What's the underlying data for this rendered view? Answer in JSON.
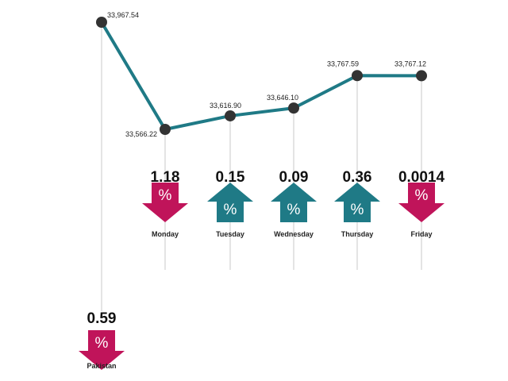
{
  "chart_data": {
    "type": "line",
    "categories": [
      "Pakistan",
      "Monday",
      "Tuesday",
      "Wednesday",
      "Thursday",
      "Friday"
    ],
    "series": [
      {
        "values": [
          33967.54,
          33566.22,
          33616.9,
          33646.1,
          33767.59,
          33767.12
        ]
      }
    ],
    "value_labels": [
      "33,967.54",
      "33,566.22",
      "33,616.90",
      "33,646.10",
      "33,767.59",
      "33,767.12"
    ],
    "ylim": [
      33500,
      34000
    ],
    "grid": false,
    "legend": "none",
    "changes": [
      {
        "day": "Pakistan",
        "percent": "0.59",
        "direction": "down"
      },
      {
        "day": "Monday",
        "percent": "1.18",
        "direction": "down"
      },
      {
        "day": "Tuesday",
        "percent": "0.15",
        "direction": "up"
      },
      {
        "day": "Wednesday",
        "percent": "0.09",
        "direction": "up"
      },
      {
        "day": "Thursday",
        "percent": "0.36",
        "direction": "up"
      },
      {
        "day": "Friday",
        "percent": "0.0014",
        "direction": "down"
      }
    ],
    "percent_symbol": "%"
  },
  "colors": {
    "line": "#1f7a86",
    "marker": "#333333",
    "down": "#c0145a",
    "up": "#1f7a86",
    "leader": "#c8c8c8"
  }
}
